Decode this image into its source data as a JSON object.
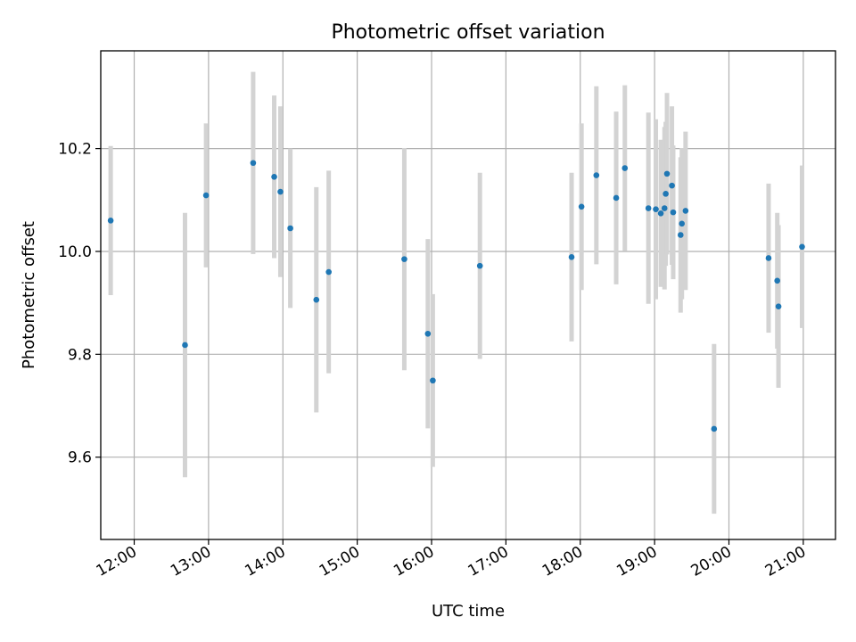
{
  "chart_data": {
    "type": "scatter",
    "title": "Photometric offset variation",
    "xlabel": "UTC time",
    "ylabel": "Photometric offset",
    "xlim": [
      "11:33",
      "21:26"
    ],
    "ylim": [
      9.44,
      10.39
    ],
    "grid": true,
    "x_ticks": [
      "12:00",
      "13:00",
      "14:00",
      "15:00",
      "16:00",
      "17:00",
      "18:00",
      "19:00",
      "20:00",
      "21:00"
    ],
    "y_ticks": [
      "9.6",
      "9.8",
      "10.0",
      "10.2"
    ],
    "colors": {
      "point": "#1f77b4",
      "errorbar": "#d3d3d3",
      "grid": "#b0b0b0"
    },
    "series": [
      {
        "points": [
          {
            "x": "11:41",
            "y": 10.06,
            "err": 0.145
          },
          {
            "x": "12:41",
            "y": 9.818,
            "err": 0.257
          },
          {
            "x": "12:58",
            "y": 10.109,
            "err": 0.14
          },
          {
            "x": "13:36",
            "y": 10.172,
            "err": 0.177
          },
          {
            "x": "13:53",
            "y": 10.145,
            "err": 0.158
          },
          {
            "x": "13:58",
            "y": 10.116,
            "err": 0.166
          },
          {
            "x": "14:06",
            "y": 10.045,
            "err": 0.155
          },
          {
            "x": "14:27",
            "y": 9.906,
            "err": 0.219
          },
          {
            "x": "14:37",
            "y": 9.96,
            "err": 0.197
          },
          {
            "x": "15:38",
            "y": 9.985,
            "err": 0.216
          },
          {
            "x": "15:57",
            "y": 9.84,
            "err": 0.184
          },
          {
            "x": "16:01",
            "y": 9.749,
            "err": 0.168
          },
          {
            "x": "16:39",
            "y": 9.972,
            "err": 0.181
          },
          {
            "x": "17:53",
            "y": 9.989,
            "err": 0.164
          },
          {
            "x": "18:01",
            "y": 10.087,
            "err": 0.162
          },
          {
            "x": "18:13",
            "y": 10.148,
            "err": 0.173
          },
          {
            "x": "18:29",
            "y": 10.104,
            "err": 0.168
          },
          {
            "x": "18:36",
            "y": 10.162,
            "err": 0.161
          },
          {
            "x": "18:55",
            "y": 10.084,
            "err": 0.186
          },
          {
            "x": "19:01",
            "y": 10.082,
            "err": 0.175
          },
          {
            "x": "19:05",
            "y": 10.074,
            "err": 0.143
          },
          {
            "x": "19:08",
            "y": 10.084,
            "err": 0.158
          },
          {
            "x": "19:09",
            "y": 10.112,
            "err": 0.14
          },
          {
            "x": "19:10",
            "y": 10.151,
            "err": 0.157
          },
          {
            "x": "19:14",
            "y": 10.128,
            "err": 0.154
          },
          {
            "x": "19:15",
            "y": 10.076,
            "err": 0.13
          },
          {
            "x": "19:21",
            "y": 10.032,
            "err": 0.151
          },
          {
            "x": "19:22",
            "y": 10.054,
            "err": 0.147
          },
          {
            "x": "19:25",
            "y": 10.079,
            "err": 0.154
          },
          {
            "x": "19:48",
            "y": 9.655,
            "err": 0.165
          },
          {
            "x": "20:32",
            "y": 9.987,
            "err": 0.145
          },
          {
            "x": "20:39",
            "y": 9.943,
            "err": 0.132
          },
          {
            "x": "20:40",
            "y": 9.893,
            "err": 0.158
          },
          {
            "x": "20:59",
            "y": 10.009,
            "err": 0.158
          }
        ]
      }
    ]
  }
}
